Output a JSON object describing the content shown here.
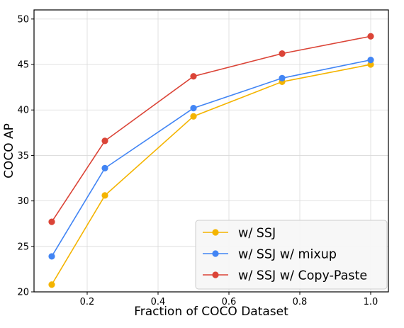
{
  "chart_data": {
    "type": "line",
    "title": "",
    "xlabel": "Fraction of COCO Dataset",
    "ylabel": "COCO AP",
    "xlim": [
      0.05,
      1.05
    ],
    "ylim": [
      20,
      51
    ],
    "grid": true,
    "legend_position": "bottom-right",
    "x_ticks": [
      0.2,
      0.4,
      0.6,
      0.8,
      1.0
    ],
    "x_tick_labels": [
      "0.2",
      "0.4",
      "0.6",
      "0.8",
      "1.0"
    ],
    "y_ticks": [
      20,
      25,
      30,
      35,
      40,
      45,
      50
    ],
    "y_tick_labels": [
      "20",
      "25",
      "30",
      "35",
      "40",
      "45",
      "50"
    ],
    "x": [
      0.1,
      0.25,
      0.5,
      0.75,
      1.0
    ],
    "series": [
      {
        "name": "w/ SSJ",
        "color": "#F4B400",
        "values": [
          20.8,
          30.6,
          39.3,
          43.1,
          45.0
        ]
      },
      {
        "name": "w/ SSJ w/ mixup",
        "color": "#4285F4",
        "values": [
          23.9,
          33.6,
          40.2,
          43.5,
          45.5
        ]
      },
      {
        "name": "w/ SSJ w/ Copy-Paste",
        "color": "#DB4437",
        "values": [
          27.7,
          36.6,
          43.7,
          46.2,
          48.1
        ]
      }
    ]
  }
}
